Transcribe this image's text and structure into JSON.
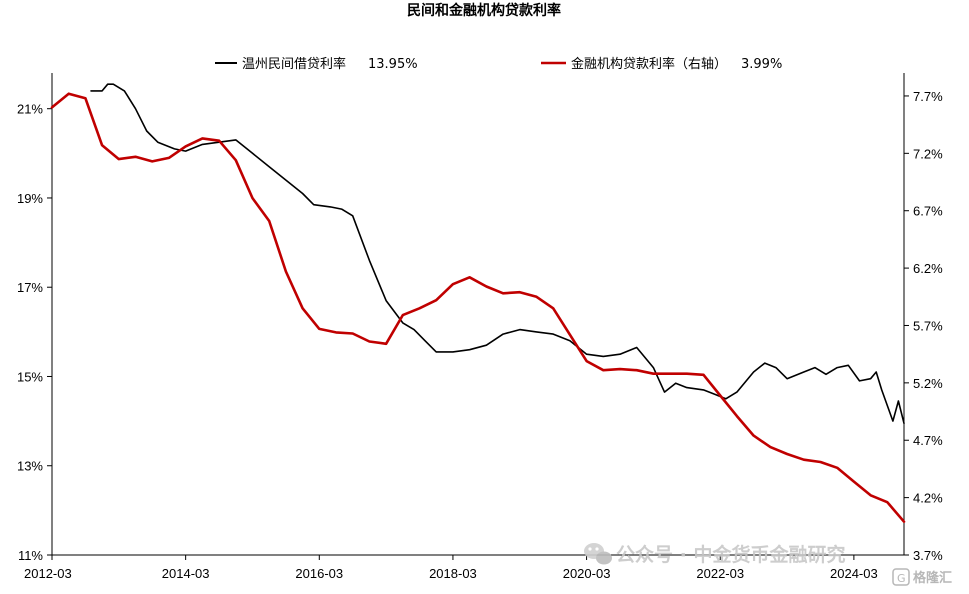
{
  "chart_data": {
    "type": "line",
    "title": "民间和金融机构贷款利率",
    "x_ticks": [
      "2012-03",
      "2014-03",
      "2016-03",
      "2018-03",
      "2020-03",
      "2022-03",
      "2024-03"
    ],
    "y_left": {
      "ticks": [
        "11%",
        "13%",
        "15%",
        "17%",
        "19%",
        "21%"
      ],
      "range": [
        11,
        21.8
      ]
    },
    "y_right": {
      "ticks": [
        "3.7%",
        "4.2%",
        "4.7%",
        "5.2%",
        "5.7%",
        "6.2%",
        "6.7%",
        "7.2%",
        "7.7%"
      ],
      "range": [
        3.7,
        7.9
      ]
    },
    "x_range": [
      "2012-03",
      "2024-12"
    ],
    "grid": false,
    "legend_position": "top",
    "series": [
      {
        "name": "温州民间借贷利率",
        "legend_value": "13.95%",
        "axis": "left",
        "color": "#000000",
        "points": [
          [
            "2012-10",
            21.4
          ],
          [
            "2012-12",
            21.4
          ],
          [
            "2013-01",
            21.55
          ],
          [
            "2013-02",
            21.55
          ],
          [
            "2013-04",
            21.4
          ],
          [
            "2013-06",
            21.0
          ],
          [
            "2013-08",
            20.5
          ],
          [
            "2013-10",
            20.25
          ],
          [
            "2014-01",
            20.1
          ],
          [
            "2014-03",
            20.05
          ],
          [
            "2014-06",
            20.2
          ],
          [
            "2014-09",
            20.25
          ],
          [
            "2014-12",
            20.3
          ],
          [
            "2015-03",
            20.0
          ],
          [
            "2015-06",
            19.7
          ],
          [
            "2015-09",
            19.4
          ],
          [
            "2015-12",
            19.1
          ],
          [
            "2016-02",
            18.85
          ],
          [
            "2016-05",
            18.8
          ],
          [
            "2016-07",
            18.75
          ],
          [
            "2016-09",
            18.6
          ],
          [
            "2016-12",
            17.6
          ],
          [
            "2017-03",
            16.7
          ],
          [
            "2017-06",
            16.2
          ],
          [
            "2017-08",
            16.05
          ],
          [
            "2017-10",
            15.8
          ],
          [
            "2017-12",
            15.55
          ],
          [
            "2018-03",
            15.55
          ],
          [
            "2018-06",
            15.6
          ],
          [
            "2018-09",
            15.7
          ],
          [
            "2018-12",
            15.95
          ],
          [
            "2019-03",
            16.05
          ],
          [
            "2019-06",
            16.0
          ],
          [
            "2019-09",
            15.95
          ],
          [
            "2019-12",
            15.8
          ],
          [
            "2020-03",
            15.5
          ],
          [
            "2020-06",
            15.45
          ],
          [
            "2020-09",
            15.5
          ],
          [
            "2020-12",
            15.65
          ],
          [
            "2021-03",
            15.2
          ],
          [
            "2021-05",
            14.65
          ],
          [
            "2021-07",
            14.85
          ],
          [
            "2021-09",
            14.75
          ],
          [
            "2021-12",
            14.7
          ],
          [
            "2022-02",
            14.6
          ],
          [
            "2022-04",
            14.5
          ],
          [
            "2022-06",
            14.65
          ],
          [
            "2022-09",
            15.1
          ],
          [
            "2022-11",
            15.3
          ],
          [
            "2023-01",
            15.2
          ],
          [
            "2023-03",
            14.95
          ],
          [
            "2023-06",
            15.1
          ],
          [
            "2023-08",
            15.2
          ],
          [
            "2023-10",
            15.05
          ],
          [
            "2023-12",
            15.2
          ],
          [
            "2024-02",
            15.25
          ],
          [
            "2024-04",
            14.9
          ],
          [
            "2024-06",
            14.95
          ],
          [
            "2024-07",
            15.1
          ],
          [
            "2024-08",
            14.7
          ],
          [
            "2024-09",
            14.35
          ],
          [
            "2024-10",
            14.0
          ],
          [
            "2024-11",
            14.45
          ],
          [
            "2024-12",
            13.95
          ]
        ]
      },
      {
        "name": "金融机构贷款利率（右轴）",
        "legend_value": "3.99%",
        "axis": "right",
        "color": "#c00000",
        "points": [
          [
            "2012-03",
            7.6
          ],
          [
            "2012-06",
            7.72
          ],
          [
            "2012-09",
            7.68
          ],
          [
            "2012-12",
            7.27
          ],
          [
            "2013-03",
            7.15
          ],
          [
            "2013-06",
            7.17
          ],
          [
            "2013-09",
            7.13
          ],
          [
            "2013-12",
            7.16
          ],
          [
            "2014-03",
            7.26
          ],
          [
            "2014-06",
            7.33
          ],
          [
            "2014-09",
            7.31
          ],
          [
            "2014-12",
            7.14
          ],
          [
            "2015-03",
            6.81
          ],
          [
            "2015-06",
            6.61
          ],
          [
            "2015-09",
            6.17
          ],
          [
            "2015-12",
            5.85
          ],
          [
            "2016-03",
            5.67
          ],
          [
            "2016-06",
            5.64
          ],
          [
            "2016-09",
            5.63
          ],
          [
            "2016-12",
            5.56
          ],
          [
            "2017-03",
            5.54
          ],
          [
            "2017-06",
            5.79
          ],
          [
            "2017-09",
            5.85
          ],
          [
            "2017-12",
            5.92
          ],
          [
            "2018-03",
            6.06
          ],
          [
            "2018-06",
            6.12
          ],
          [
            "2018-09",
            6.04
          ],
          [
            "2018-12",
            5.98
          ],
          [
            "2019-03",
            5.99
          ],
          [
            "2019-06",
            5.95
          ],
          [
            "2019-09",
            5.85
          ],
          [
            "2019-12",
            5.62
          ],
          [
            "2020-03",
            5.39
          ],
          [
            "2020-06",
            5.31
          ],
          [
            "2020-09",
            5.32
          ],
          [
            "2020-12",
            5.31
          ],
          [
            "2021-03",
            5.28
          ],
          [
            "2021-06",
            5.28
          ],
          [
            "2021-09",
            5.28
          ],
          [
            "2021-12",
            5.27
          ],
          [
            "2022-03",
            5.09
          ],
          [
            "2022-06",
            4.91
          ],
          [
            "2022-09",
            4.74
          ],
          [
            "2022-12",
            4.64
          ],
          [
            "2023-03",
            4.58
          ],
          [
            "2023-06",
            4.53
          ],
          [
            "2023-09",
            4.51
          ],
          [
            "2023-12",
            4.46
          ],
          [
            "2024-03",
            4.34
          ],
          [
            "2024-06",
            4.22
          ],
          [
            "2024-09",
            4.16
          ],
          [
            "2024-12",
            3.99
          ]
        ]
      }
    ]
  },
  "watermark": {
    "main": "公众号 · 中金货币金融研究",
    "sub": "格隆汇"
  }
}
